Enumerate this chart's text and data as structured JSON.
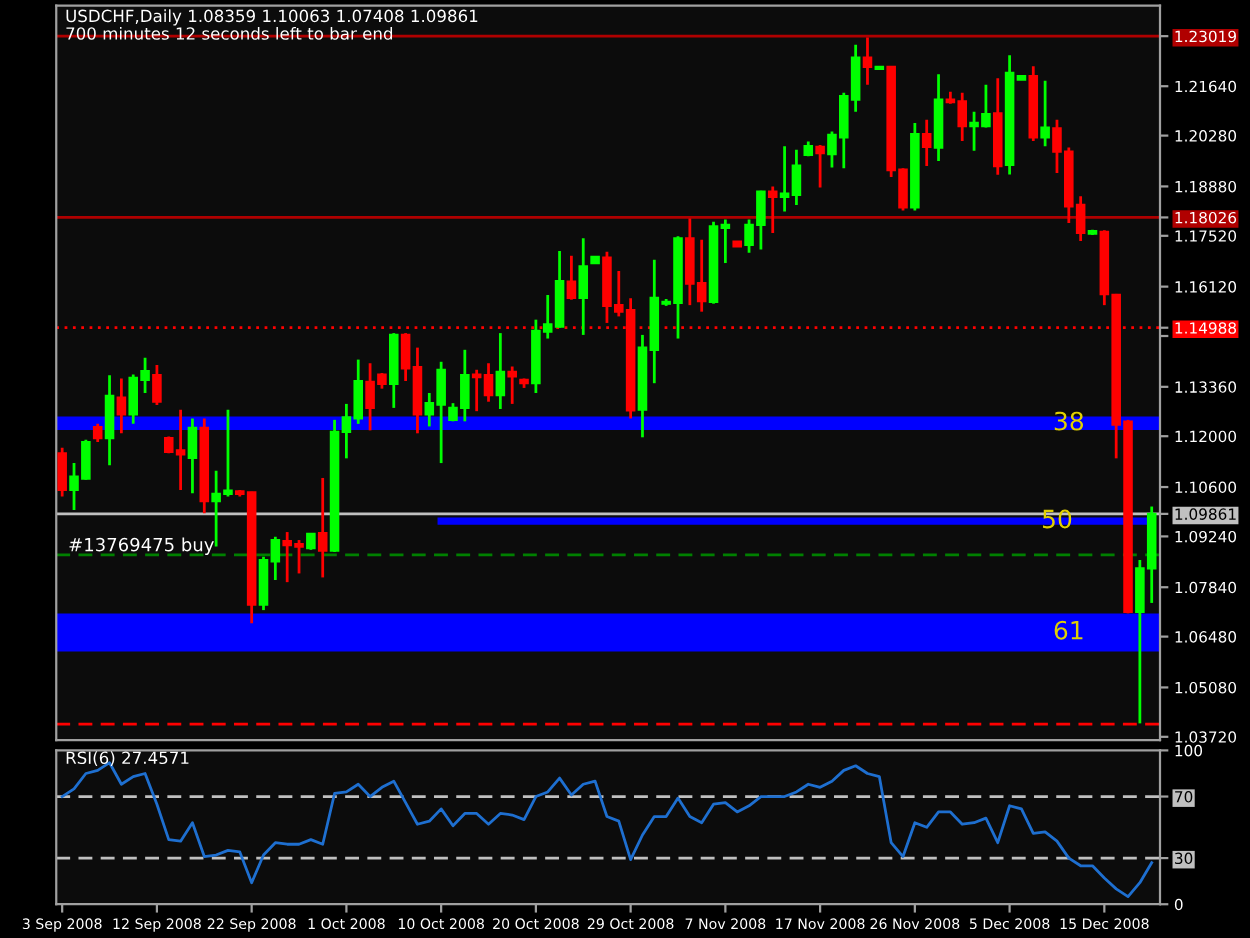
{
  "chart_data": [
    {
      "type": "candlestick",
      "title": "USDCHF,Daily 1.08359 1.10063 1.07408 1.09861",
      "subtitle": "700 minutes 12 seconds left to bar end",
      "categories": [
        null,
        null,
        null,
        null,
        null,
        null,
        null,
        null,
        null,
        null,
        null,
        null,
        null,
        null,
        null,
        null,
        null,
        null,
        null,
        null,
        null,
        null,
        null,
        null,
        null,
        null,
        null,
        null,
        null,
        null,
        null,
        null,
        null,
        null,
        null,
        null,
        null,
        null,
        null,
        null,
        null,
        null,
        null,
        null,
        null,
        null,
        null,
        null,
        null,
        null,
        null,
        null,
        null,
        null,
        null,
        null,
        null,
        null,
        null,
        null,
        null,
        null,
        null,
        null,
        null,
        null,
        null,
        null,
        null,
        null,
        null,
        null,
        null,
        null,
        null,
        null,
        null,
        null,
        null,
        null,
        null,
        null,
        null,
        null,
        null,
        null,
        null,
        null,
        null,
        null,
        null,
        null,
        null
      ],
      "ohlc": [
        [
          1.1153,
          1.1168,
          1.1034,
          1.1052
        ],
        [
          1.1052,
          1.1126,
          1.0997,
          1.1089
        ],
        [
          1.1083,
          1.119,
          1.108,
          1.1184
        ],
        [
          1.1225,
          1.1234,
          1.1184,
          1.1195
        ],
        [
          1.1195,
          1.1368,
          1.112,
          1.1311
        ],
        [
          1.1306,
          1.1359,
          1.1208,
          1.126
        ],
        [
          1.126,
          1.137,
          1.1234,
          1.1361
        ],
        [
          1.1355,
          1.1416,
          1.1319,
          1.1379
        ],
        [
          1.1368,
          1.1396,
          1.1286,
          1.1295
        ],
        [
          1.1195,
          1.1199,
          1.1153,
          1.1157
        ],
        [
          1.1161,
          1.1273,
          1.1052,
          1.115
        ],
        [
          1.114,
          1.1249,
          1.1043,
          1.1223
        ],
        [
          1.1223,
          1.1249,
          1.0988,
          1.1021
        ],
        [
          1.1021,
          1.1105,
          1.0896,
          1.1041
        ],
        [
          1.1041,
          1.1273,
          1.1034,
          1.105
        ],
        [
          1.1048,
          1.1052,
          1.1034,
          1.1041
        ],
        [
          1.1045,
          1.1047,
          1.0685,
          1.0736
        ],
        [
          1.0736,
          1.0868,
          1.0721,
          1.0859
        ],
        [
          1.0855,
          1.0923,
          1.0804,
          1.0914
        ],
        [
          1.0911,
          1.0936,
          1.0798,
          1.09
        ],
        [
          1.0903,
          1.0914,
          1.0822,
          1.0896
        ],
        [
          1.0892,
          1.0933,
          1.0887,
          1.0931
        ],
        [
          1.0933,
          1.1085,
          1.0811,
          1.0885
        ],
        [
          1.0885,
          1.1245,
          1.0881,
          1.1212
        ],
        [
          1.1212,
          1.1289,
          1.1139,
          1.1252
        ],
        [
          1.1249,
          1.1411,
          1.1234,
          1.1352
        ],
        [
          1.135,
          1.1401,
          1.1216,
          1.1278
        ],
        [
          1.137,
          1.1374,
          1.1331,
          1.1344
        ],
        [
          1.1344,
          1.1484,
          1.1278,
          1.1479
        ],
        [
          1.1479,
          1.1484,
          1.1352,
          1.1387
        ],
        [
          1.139,
          1.1444,
          1.1208,
          1.126
        ],
        [
          1.126,
          1.1319,
          1.1227,
          1.1291
        ],
        [
          1.1287,
          1.1405,
          1.1126,
          1.1383
        ],
        [
          1.1245,
          1.1291,
          1.1241,
          1.1278
        ],
        [
          1.1278,
          1.1438,
          1.1241,
          1.1368
        ],
        [
          1.137,
          1.1383,
          1.1269,
          1.1363
        ],
        [
          1.1368,
          1.1401,
          1.1295,
          1.1313
        ],
        [
          1.1313,
          1.1484,
          1.1275,
          1.1377
        ],
        [
          1.1377,
          1.1392,
          1.1289,
          1.1365
        ],
        [
          1.1355,
          1.1359,
          1.1333,
          1.1346
        ],
        [
          1.1346,
          1.1521,
          1.1319,
          1.149
        ],
        [
          1.1488,
          1.1589,
          1.1469,
          1.1508
        ],
        [
          1.1502,
          1.171,
          1.1499,
          1.1627
        ],
        [
          1.1626,
          1.1697,
          1.1576,
          1.1581
        ],
        [
          1.1581,
          1.1745,
          1.1479,
          1.1668
        ],
        [
          1.1677,
          1.1694,
          1.1677,
          1.1694
        ],
        [
          1.1692,
          1.1708,
          1.1512,
          1.1559
        ],
        [
          1.1561,
          1.1655,
          1.153,
          1.1543
        ],
        [
          1.1547,
          1.158,
          1.1249,
          1.1271
        ],
        [
          1.1273,
          1.1479,
          1.1197,
          1.1444
        ],
        [
          1.1438,
          1.1686,
          1.1346,
          1.1581
        ],
        [
          1.1565,
          1.1578,
          1.1559,
          1.157
        ],
        [
          1.1567,
          1.1751,
          1.1469,
          1.1745
        ],
        [
          1.1745,
          1.18,
          1.1561,
          1.162
        ],
        [
          1.1622,
          1.1741,
          1.1543,
          1.1572
        ],
        [
          1.157,
          1.1791,
          1.1565,
          1.1778
        ],
        [
          1.1774,
          1.1797,
          1.1677,
          1.1782
        ],
        [
          1.1736,
          1.1738,
          1.1721,
          1.1723
        ],
        [
          1.1727,
          1.1797,
          1.1705,
          1.1782
        ],
        [
          1.1782,
          1.1876,
          1.1714,
          1.1874
        ],
        [
          1.1874,
          1.1888,
          1.176,
          1.1859
        ],
        [
          1.1859,
          1.1999,
          1.1819,
          1.1868
        ],
        [
          1.1865,
          1.1989,
          1.1837,
          1.1945
        ],
        [
          1.1975,
          1.2012,
          1.1971,
          1.1999
        ],
        [
          1.1997,
          1.2002,
          1.1885,
          1.198
        ],
        [
          1.1977,
          1.2039,
          1.194,
          1.203
        ],
        [
          1.2023,
          1.2146,
          1.1938,
          1.2137
        ],
        [
          1.2127,
          1.2278,
          1.2094,
          1.2243
        ],
        [
          1.2243,
          1.2298,
          1.2168,
          1.2217
        ],
        [
          1.2212,
          1.2217,
          1.2212,
          1.2217
        ],
        [
          1.2217,
          1.2219,
          1.1914,
          1.1933
        ],
        [
          1.1934,
          1.1938,
          1.1822,
          1.183
        ],
        [
          1.183,
          1.2063,
          1.1822,
          1.2032
        ],
        [
          1.2032,
          1.2072,
          1.1944,
          1.1997
        ],
        [
          1.1995,
          1.2197,
          1.1958,
          1.2127
        ],
        [
          1.2127,
          1.2149,
          1.2116,
          1.212
        ],
        [
          1.2122,
          1.2146,
          1.2013,
          1.2054
        ],
        [
          1.2054,
          1.2094,
          1.1986,
          1.2063
        ],
        [
          1.2054,
          1.2168,
          1.205,
          1.2087
        ],
        [
          1.2089,
          1.2186,
          1.192,
          1.1944
        ],
        [
          1.1947,
          1.2249,
          1.1921,
          1.2201
        ],
        [
          1.2182,
          1.2192,
          1.2182,
          1.2192
        ],
        [
          1.2192,
          1.2219,
          1.2013,
          1.2023
        ],
        [
          1.2023,
          1.2179,
          1.1999,
          1.205
        ],
        [
          1.2048,
          1.2072,
          1.1925,
          1.1984
        ],
        [
          1.1984,
          1.1995,
          1.1787,
          1.1833
        ],
        [
          1.1837,
          1.1861,
          1.1738,
          1.176
        ],
        [
          1.1758,
          1.1769,
          1.1754,
          1.1765
        ],
        [
          1.1763,
          1.1767,
          1.1561,
          1.1591
        ],
        [
          1.1589,
          1.1592,
          1.1139,
          1.1232
        ],
        [
          1.124,
          1.1245,
          1.0712,
          1.0716
        ],
        [
          1.0716,
          1.0859,
          1.0409,
          1.0836
        ],
        [
          1.08359,
          1.10063,
          1.07408,
          1.09861
        ]
      ],
      "colors": [
        "#ff0000",
        "#00ff00",
        "#00ff00",
        "#ff0000",
        "#00ff00",
        "#ff0000",
        "#00ff00",
        "#00ff00",
        "#ff0000",
        "#ff0000",
        "#ff0000",
        "#00ff00",
        "#ff0000",
        "#00ff00",
        "#00ff00",
        "#ff0000",
        "#ff0000",
        "#00ff00",
        "#00ff00",
        "#ff0000",
        "#ff0000",
        "#00ff00",
        "#ff0000",
        "#00ff00",
        "#00ff00",
        "#00ff00",
        "#ff0000",
        "#ff0000",
        "#00ff00",
        "#ff0000",
        "#ff0000",
        "#00ff00",
        "#00ff00",
        "#00ff00",
        "#00ff00",
        "#ff0000",
        "#ff0000",
        "#00ff00",
        "#ff0000",
        "#ff0000",
        "#00ff00",
        "#00ff00",
        "#00ff00",
        "#ff0000",
        "#00ff00",
        "#00ff00",
        "#ff0000",
        "#ff0000",
        "#ff0000",
        "#00ff00",
        "#00ff00",
        "#00ff00",
        "#00ff00",
        "#ff0000",
        "#ff0000",
        "#00ff00",
        "#00ff00",
        "#ff0000",
        "#00ff00",
        "#00ff00",
        "#ff0000",
        "#00ff00",
        "#00ff00",
        "#00ff00",
        "#ff0000",
        "#00ff00",
        "#00ff00",
        "#00ff00",
        "#ff0000",
        "#00ff00",
        "#ff0000",
        "#ff0000",
        "#00ff00",
        "#ff0000",
        "#00ff00",
        "#ff0000",
        "#ff0000",
        "#00ff00",
        "#00ff00",
        "#ff0000",
        "#00ff00",
        "#00ff00",
        "#ff0000",
        "#00ff00",
        "#ff0000",
        "#ff0000",
        "#ff0000",
        "#00ff00",
        "#ff0000",
        "#ff0000",
        "#ff0000",
        "#00ff00",
        "#00ff00"
      ],
      "series": [
        {
          "type": "line",
          "color": "#0000ff",
          "values": [
            null,
            null,
            null,
            null,
            null,
            null,
            null,
            null,
            null,
            null,
            null,
            null,
            null,
            null,
            null,
            null,
            null,
            null,
            null,
            null,
            null,
            null,
            null,
            null,
            null,
            null,
            null,
            null,
            null,
            null,
            null,
            null,
            1.0966,
            1.0966,
            1.0966,
            1.0966,
            1.0966,
            1.0966,
            1.0966,
            1.0966,
            1.0966,
            1.0966,
            1.0966,
            1.0966,
            1.0966,
            1.0966,
            1.0966,
            1.0966,
            1.0966,
            1.0966,
            1.0966,
            1.0966,
            1.0966,
            1.0966,
            1.0966,
            1.0966,
            1.0966,
            1.0966,
            1.0966,
            1.0966,
            1.0966,
            1.0966,
            1.0966,
            1.0966,
            1.0966,
            1.0966,
            1.0966,
            1.0966,
            1.0966,
            1.0966,
            1.0966,
            1.0966,
            1.0966,
            1.0966,
            1.0966,
            1.0966,
            1.0966,
            1.0966,
            1.0966,
            1.0966,
            1.0966,
            1.0966,
            1.0966,
            1.0966,
            1.0966,
            1.0966,
            1.0966,
            1.0966,
            1.0966,
            1.0966,
            1.0966,
            1.0966,
            1.0966
          ]
        }
      ],
      "ylim": [
        1.0363,
        1.2386
      ],
      "yticks": [
        {
          "value": 1.0372,
          "label": "1.03720"
        },
        {
          "value": 1.0508,
          "label": "1.05080"
        },
        {
          "value": 1.0648,
          "label": "1.06480"
        },
        {
          "value": 1.0784,
          "label": "1.07840"
        },
        {
          "value": 1.0924,
          "label": "1.09240"
        },
        {
          "value": 1.09861,
          "label": "1.09861"
        },
        {
          "value": 1.106,
          "label": "1.10600"
        },
        {
          "value": 1.12,
          "label": "1.12000"
        },
        {
          "value": 1.1336,
          "label": "1.13360"
        },
        {
          "value": 1.1476,
          "label": null
        },
        {
          "value": 1.14988,
          "label": "1.14988"
        },
        {
          "value": 1.1612,
          "label": "1.16120"
        },
        {
          "value": 1.1752,
          "label": "1.17520"
        },
        {
          "value": 1.18026,
          "label": "1.18026"
        },
        {
          "value": 1.1888,
          "label": "1.18880"
        },
        {
          "value": 1.2028,
          "label": "1.20280"
        },
        {
          "value": 1.2164,
          "label": "1.21640"
        },
        {
          "value": 1.23019,
          "label": "1.23019"
        }
      ],
      "ref_lines": [
        {
          "axis": "y",
          "value": 1.23019,
          "color": "#b00000",
          "line_style": "solid"
        },
        {
          "axis": "y",
          "value": 1.18026,
          "color": "#b00000",
          "line_style": "solid"
        },
        {
          "axis": "y",
          "value": 1.14988,
          "color": "#ff0000",
          "line_style": "dotted"
        },
        {
          "axis": "y",
          "value": 1.09861,
          "color": "#c0c0c0",
          "line_style": "solid"
        },
        {
          "axis": "y",
          "value": 1.0873,
          "color": "#008000",
          "line_style": "dashed",
          "label": "#13769475 buy"
        },
        {
          "axis": "y",
          "value": 1.0407,
          "color": "#ff0000",
          "line_style": "dashed"
        }
      ],
      "bands": [
        {
          "axis": "y",
          "from": 1.1217,
          "to": 1.1254,
          "label": "38",
          "color": "#0000ff"
        },
        {
          "axis": "y",
          "from": 1.0607,
          "to": 1.0712,
          "label": "61",
          "color": "#0000ff"
        }
      ],
      "annotations": [
        {
          "text": "50",
          "y": 1.0966
        }
      ],
      "tick_labels": "y"
    },
    {
      "type": "line",
      "title": "RSI(6) 27.4571",
      "categories": [
        "3 Sep 2008",
        null,
        null,
        null,
        null,
        null,
        null,
        null,
        "12 Sep 2008",
        null,
        null,
        null,
        null,
        null,
        null,
        null,
        "22 Sep 2008",
        null,
        null,
        null,
        null,
        null,
        null,
        null,
        "1 Oct 2008",
        null,
        null,
        null,
        null,
        null,
        null,
        null,
        "10 Oct 2008",
        null,
        null,
        null,
        null,
        null,
        null,
        null,
        "20 Oct 2008",
        null,
        null,
        null,
        null,
        null,
        null,
        null,
        "29 Oct 2008",
        null,
        null,
        null,
        null,
        null,
        null,
        null,
        "7 Nov 2008",
        null,
        null,
        null,
        null,
        null,
        null,
        null,
        "17 Nov 2008",
        null,
        null,
        null,
        null,
        null,
        null,
        null,
        "26 Nov 2008",
        null,
        null,
        null,
        null,
        null,
        null,
        null,
        "5 Dec 2008",
        null,
        null,
        null,
        null,
        null,
        null,
        null,
        "15 Dec 2008",
        null,
        null,
        null,
        null
      ],
      "series": [
        {
          "color": "#1e6fd0",
          "values": [
            70,
            75,
            85,
            87,
            92,
            78,
            83,
            85,
            65,
            42,
            41,
            53,
            31,
            32,
            35,
            34,
            14,
            32,
            40,
            39,
            39,
            42,
            39,
            72,
            73,
            78,
            70,
            76,
            80,
            66,
            52,
            54,
            62,
            51,
            59,
            59,
            52,
            59,
            58,
            55,
            70,
            73,
            82,
            71,
            78,
            80,
            57,
            54,
            29,
            45,
            57,
            57,
            69,
            57,
            53,
            65,
            66,
            60,
            64,
            70,
            70,
            70,
            73,
            78,
            76,
            80,
            87,
            90,
            85,
            83,
            40,
            31,
            53,
            50,
            60,
            60,
            52,
            53,
            56,
            40,
            64,
            62,
            46,
            47,
            41,
            30,
            25,
            25,
            17,
            10,
            5,
            14,
            27
          ]
        }
      ],
      "ylim": [
        0,
        100
      ],
      "yticks": [
        0,
        30,
        70,
        100
      ],
      "ref_lines": [
        {
          "axis": "y",
          "value": 30,
          "color": "#c0c0c0",
          "line_style": "dashed"
        },
        {
          "axis": "y",
          "value": 70,
          "color": "#c0c0c0",
          "line_style": "dashed"
        }
      ]
    }
  ]
}
